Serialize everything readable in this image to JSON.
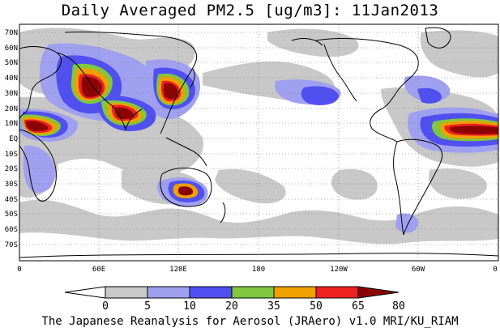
{
  "title": "Daily Averaged PM2.5 [ug/m3]: 11Jan2013",
  "footer": "The Japanese Reanalysis for Aerosol (JRAero) v1.0 MRI/KU_RIAM",
  "chart_data": {
    "type": "heatmap",
    "lat_ticks": [
      "70N",
      "60N",
      "50N",
      "40N",
      "30N",
      "20N",
      "10N",
      "EQ",
      "10S",
      "20S",
      "30S",
      "40S",
      "50S",
      "60S",
      "70S"
    ],
    "lon_ticks": [
      "0",
      "60E",
      "120E",
      "180",
      "120W",
      "60W",
      "0"
    ],
    "colorbar": {
      "levels": [
        "0",
        "5",
        "10",
        "20",
        "35",
        "50",
        "65",
        "80"
      ],
      "colors": [
        "#ffffff",
        "#c8c8c8",
        "#a0a0f0",
        "#5050f0",
        "#80c840",
        "#f0a000",
        "#f02020",
        "#8c0000"
      ]
    },
    "grid": "dotted"
  }
}
